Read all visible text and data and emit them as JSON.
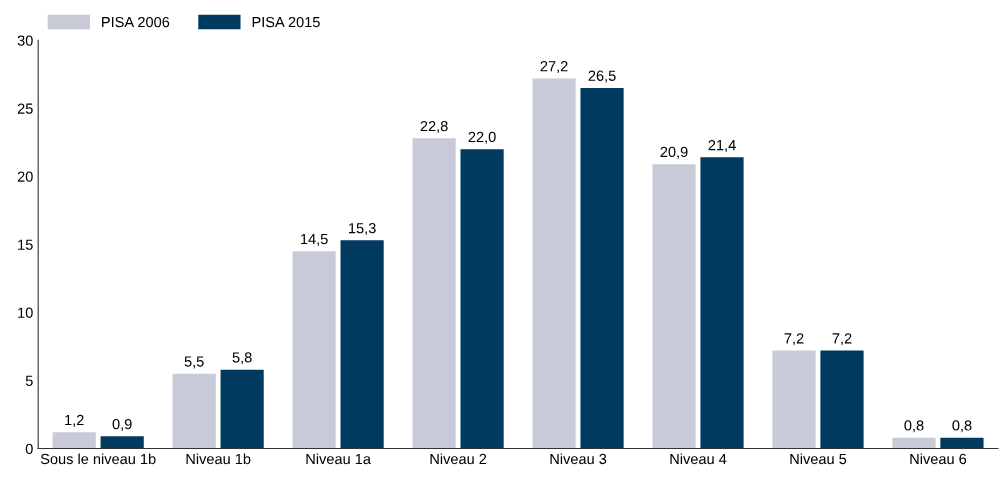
{
  "chart_data": {
    "type": "bar",
    "categories": [
      "Sous le niveau 1b",
      "Niveau 1b",
      "Niveau 1a",
      "Niveau 2",
      "Niveau 3",
      "Niveau 4",
      "Niveau 5",
      "Niveau 6"
    ],
    "series": [
      {
        "name": "PISA 2006",
        "color": "#c9cad8",
        "values": [
          1.2,
          5.5,
          14.5,
          22.8,
          27.2,
          20.9,
          7.2,
          0.8
        ],
        "value_labels": [
          "1,2",
          "5,5",
          "14,5",
          "22,8",
          "27,2",
          "20,9",
          "7,2",
          "0,8"
        ]
      },
      {
        "name": "PISA 2015",
        "color": "#003a5e",
        "values": [
          0.9,
          5.8,
          15.3,
          22.0,
          26.5,
          21.4,
          7.2,
          0.8
        ],
        "value_labels": [
          "0,9",
          "5,8",
          "15,3",
          "22,0",
          "26,5",
          "21,4",
          "7,2",
          "0,8"
        ]
      }
    ],
    "ylim": [
      0,
      30
    ],
    "yticks": [
      0,
      5,
      10,
      15,
      20,
      25,
      30
    ],
    "grid": false,
    "legend": "top left"
  }
}
